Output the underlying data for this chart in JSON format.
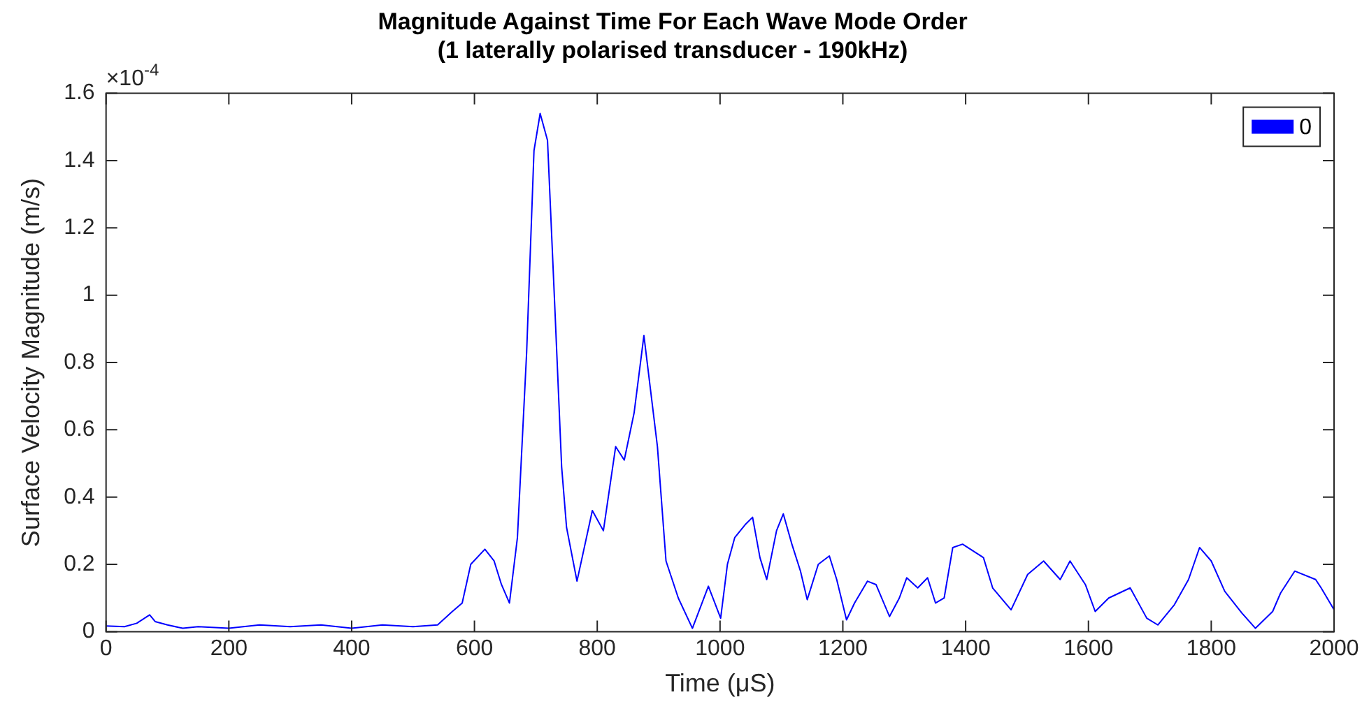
{
  "chart_data": {
    "type": "line",
    "title": "Magnitude Against Time For Each Wave Mode Order",
    "subtitle": "(1 laterally polarised transducer - 190kHz)",
    "xlabel": "Time (μS)",
    "ylabel": "Surface Velocity Magnitude (m/s)",
    "annotations": [
      "×10$^{-4}$"
    ],
    "xlim": [
      0,
      2000
    ],
    "xticks": [
      0,
      200,
      400,
      600,
      800,
      1000,
      1200,
      1400,
      1600,
      1800,
      2000
    ],
    "ylim": [
      0,
      1.6
    ],
    "yticks": [
      0,
      0.2,
      0.4,
      0.6,
      0.8,
      1,
      1.2,
      1.4,
      1.6
    ],
    "grid": false,
    "legend": "top right",
    "marker": "none",
    "line_style": "solid",
    "series": [
      {
        "name": "0",
        "color": "#0000ff",
        "x": [
          0,
          30,
          50,
          71,
          80,
          100,
          125,
          150,
          200,
          250,
          300,
          350,
          400,
          450,
          500,
          540,
          564,
          580,
          594,
          617,
          632,
          644,
          657,
          670,
          685,
          697,
          707,
          719,
          731,
          742,
          750,
          767,
          792,
          810,
          830,
          844,
          860,
          876,
          898,
          912,
          932,
          955,
          981,
          1001,
          1012,
          1024,
          1042,
          1053,
          1065,
          1076,
          1092,
          1103,
          1117,
          1131,
          1142,
          1160,
          1178,
          1190,
          1206,
          1219,
          1240,
          1254,
          1276,
          1292,
          1304,
          1322,
          1338,
          1351,
          1365,
          1379,
          1395,
          1429,
          1444,
          1474,
          1501,
          1527,
          1554,
          1570,
          1595,
          1611,
          1633,
          1668,
          1695,
          1713,
          1740,
          1763,
          1781,
          1800,
          1822,
          1850,
          1872,
          1900,
          1913,
          1936,
          1970,
          1979,
          2000
        ],
        "values": [
          0.017,
          0.015,
          0.025,
          0.05,
          0.03,
          0.02,
          0.01,
          0.015,
          0.01,
          0.02,
          0.015,
          0.02,
          0.01,
          0.02,
          0.015,
          0.02,
          0.06,
          0.085,
          0.2,
          0.245,
          0.21,
          0.14,
          0.085,
          0.28,
          0.83,
          1.43,
          1.54,
          1.46,
          0.96,
          0.49,
          0.31,
          0.15,
          0.36,
          0.3,
          0.55,
          0.51,
          0.65,
          0.88,
          0.55,
          0.21,
          0.1,
          0.01,
          0.135,
          0.04,
          0.2,
          0.28,
          0.32,
          0.34,
          0.22,
          0.155,
          0.3,
          0.35,
          0.26,
          0.18,
          0.095,
          0.2,
          0.225,
          0.155,
          0.035,
          0.085,
          0.15,
          0.14,
          0.045,
          0.1,
          0.16,
          0.13,
          0.16,
          0.085,
          0.1,
          0.25,
          0.26,
          0.22,
          0.13,
          0.065,
          0.17,
          0.21,
          0.155,
          0.21,
          0.14,
          0.06,
          0.1,
          0.13,
          0.04,
          0.02,
          0.08,
          0.155,
          0.25,
          0.21,
          0.12,
          0.055,
          0.01,
          0.06,
          0.115,
          0.18,
          0.155,
          0.13,
          0.065
        ]
      }
    ]
  }
}
